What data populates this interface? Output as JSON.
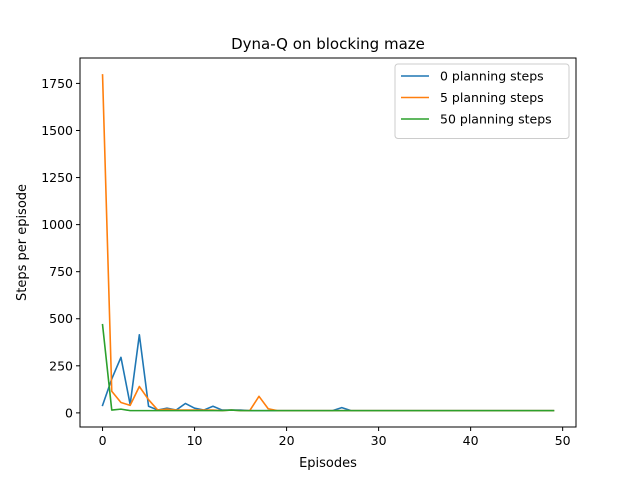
{
  "chart_data": {
    "type": "line",
    "title": "Dyna-Q on blocking maze",
    "xlabel": "Episodes",
    "ylabel": "Steps per episode",
    "xlim": [
      -2.45,
      51.45
    ],
    "ylim": [
      -75,
      1885
    ],
    "xticks": [
      0,
      10,
      20,
      30,
      40,
      50
    ],
    "yticks": [
      0,
      250,
      500,
      750,
      1000,
      1250,
      1500,
      1750
    ],
    "grid": false,
    "legend_position": "top-right",
    "x": [
      0,
      1,
      2,
      3,
      4,
      5,
      6,
      7,
      8,
      9,
      10,
      11,
      12,
      13,
      14,
      15,
      16,
      17,
      18,
      19,
      20,
      21,
      22,
      23,
      24,
      25,
      26,
      27,
      28,
      29,
      30,
      31,
      32,
      33,
      34,
      35,
      36,
      37,
      38,
      39,
      40,
      41,
      42,
      43,
      44,
      45,
      46,
      47,
      48,
      49
    ],
    "series": [
      {
        "name": "0 planning steps",
        "color": "#1f77b4",
        "values": [
          40,
          180,
          295,
          45,
          415,
          35,
          15,
          25,
          15,
          50,
          25,
          15,
          35,
          15,
          15,
          15,
          12,
          12,
          12,
          12,
          12,
          12,
          12,
          12,
          12,
          12,
          28,
          12,
          12,
          12,
          12,
          12,
          12,
          12,
          12,
          12,
          12,
          12,
          12,
          12,
          12,
          12,
          12,
          12,
          12,
          12,
          12,
          12,
          12,
          12
        ]
      },
      {
        "name": "5 planning steps",
        "color": "#ff7f0e",
        "values": [
          1795,
          115,
          55,
          40,
          140,
          70,
          15,
          20,
          15,
          15,
          15,
          15,
          15,
          12,
          15,
          12,
          12,
          88,
          22,
          12,
          12,
          12,
          12,
          12,
          12,
          12,
          12,
          12,
          12,
          12,
          12,
          12,
          12,
          12,
          12,
          12,
          12,
          12,
          12,
          12,
          12,
          12,
          12,
          12,
          12,
          12,
          12,
          12,
          12,
          12
        ]
      },
      {
        "name": "50 planning steps",
        "color": "#2ca02c",
        "values": [
          468,
          15,
          20,
          12,
          12,
          12,
          12,
          12,
          12,
          12,
          12,
          12,
          12,
          12,
          15,
          12,
          12,
          12,
          12,
          12,
          12,
          12,
          12,
          12,
          12,
          12,
          12,
          12,
          12,
          12,
          12,
          12,
          12,
          12,
          12,
          12,
          12,
          12,
          12,
          12,
          12,
          12,
          12,
          12,
          12,
          12,
          12,
          12,
          12,
          12
        ]
      }
    ]
  }
}
